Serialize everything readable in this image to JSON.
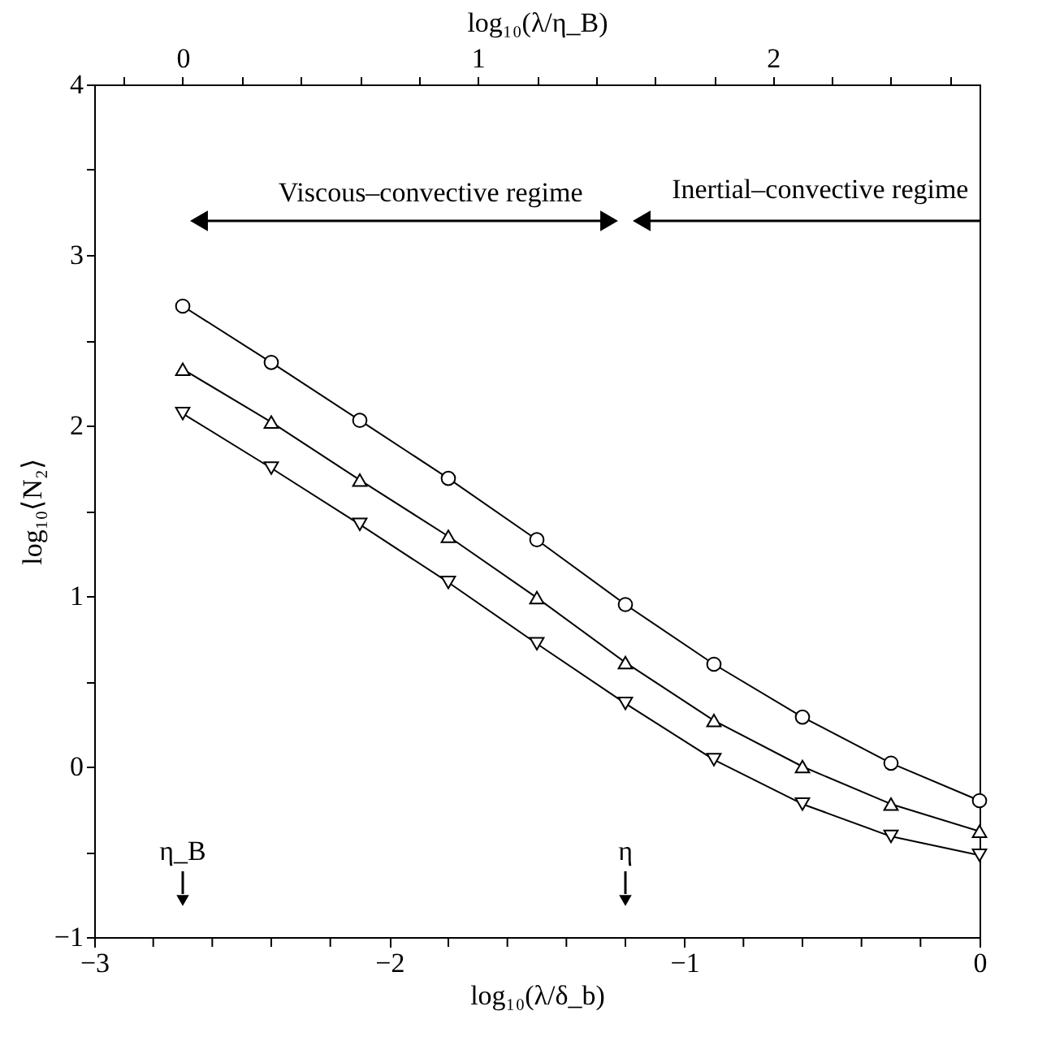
{
  "chart_data": {
    "type": "line",
    "xlabel": "log₁₀(λ/δ_b)",
    "ylabel": "log₁₀⟨N₂⟩",
    "x2label": "log₁₀(λ/η_B)",
    "x": [
      -2.7,
      -2.4,
      -2.1,
      -1.8,
      -1.5,
      -1.2,
      -0.9,
      -0.6,
      -0.3,
      0
    ],
    "series": [
      {
        "color": "#000000",
        "marker": "circle",
        "values": [
          2.7,
          2.37,
          2.03,
          1.69,
          1.33,
          0.95,
          0.6,
          0.29,
          0.02,
          -0.2
        ]
      },
      {
        "color": "#000000",
        "marker": "triangle",
        "values": [
          2.33,
          2.02,
          1.68,
          1.35,
          0.99,
          0.61,
          0.27,
          0.0,
          -0.22,
          -0.38
        ]
      },
      {
        "color": "#000000",
        "marker": "triangle-down",
        "values": [
          2.07,
          1.75,
          1.42,
          1.08,
          0.72,
          0.37,
          0.04,
          -0.22,
          -0.41,
          -0.52
        ]
      }
    ],
    "xlim": [
      -3,
      0
    ],
    "ylim": [
      -1,
      4
    ],
    "x2lim": [
      -0.3,
      2.7
    ],
    "xticks": [
      -3,
      {
        "value": -2.8,
        "label": null
      },
      {
        "value": -2.6,
        "label": null
      },
      {
        "value": -2.4,
        "label": null
      },
      {
        "value": -2.2,
        "label": null
      },
      -2,
      {
        "value": -1.8,
        "label": null
      },
      {
        "value": -1.6,
        "label": null
      },
      {
        "value": -1.4,
        "label": null
      },
      {
        "value": -1.2,
        "label": null
      },
      -1,
      {
        "value": -0.8,
        "label": null
      },
      {
        "value": -0.6,
        "label": null
      },
      {
        "value": -0.4,
        "label": null
      },
      {
        "value": -0.2,
        "label": null
      },
      0
    ],
    "yticks": [
      -1,
      {
        "value": -0.5,
        "label": null
      },
      0,
      {
        "value": 0.5,
        "label": null
      },
      1,
      {
        "value": 1.5,
        "label": null
      },
      2,
      {
        "value": 2.5,
        "label": null
      },
      3,
      {
        "value": 3.5,
        "label": null
      },
      4
    ],
    "x2ticks": [
      {
        "value": -0.2,
        "label": null
      },
      0,
      {
        "value": 0.2,
        "label": null
      },
      {
        "value": 0.4,
        "label": null
      },
      {
        "value": 0.6,
        "label": null
      },
      {
        "value": 0.8,
        "label": null
      },
      1,
      {
        "value": 1.2,
        "label": null
      },
      {
        "value": 1.4,
        "label": null
      },
      {
        "value": 1.6,
        "label": null
      },
      {
        "value": 1.8,
        "label": null
      },
      2,
      {
        "value": 2.2,
        "label": null
      },
      {
        "value": 2.4,
        "label": null
      },
      {
        "value": 2.6,
        "label": null
      }
    ],
    "annotations": [
      "Viscous–convective regime",
      "Inertial–convective regime",
      "η_B",
      "η"
    ],
    "line_style": "solid",
    "grid": false
  }
}
